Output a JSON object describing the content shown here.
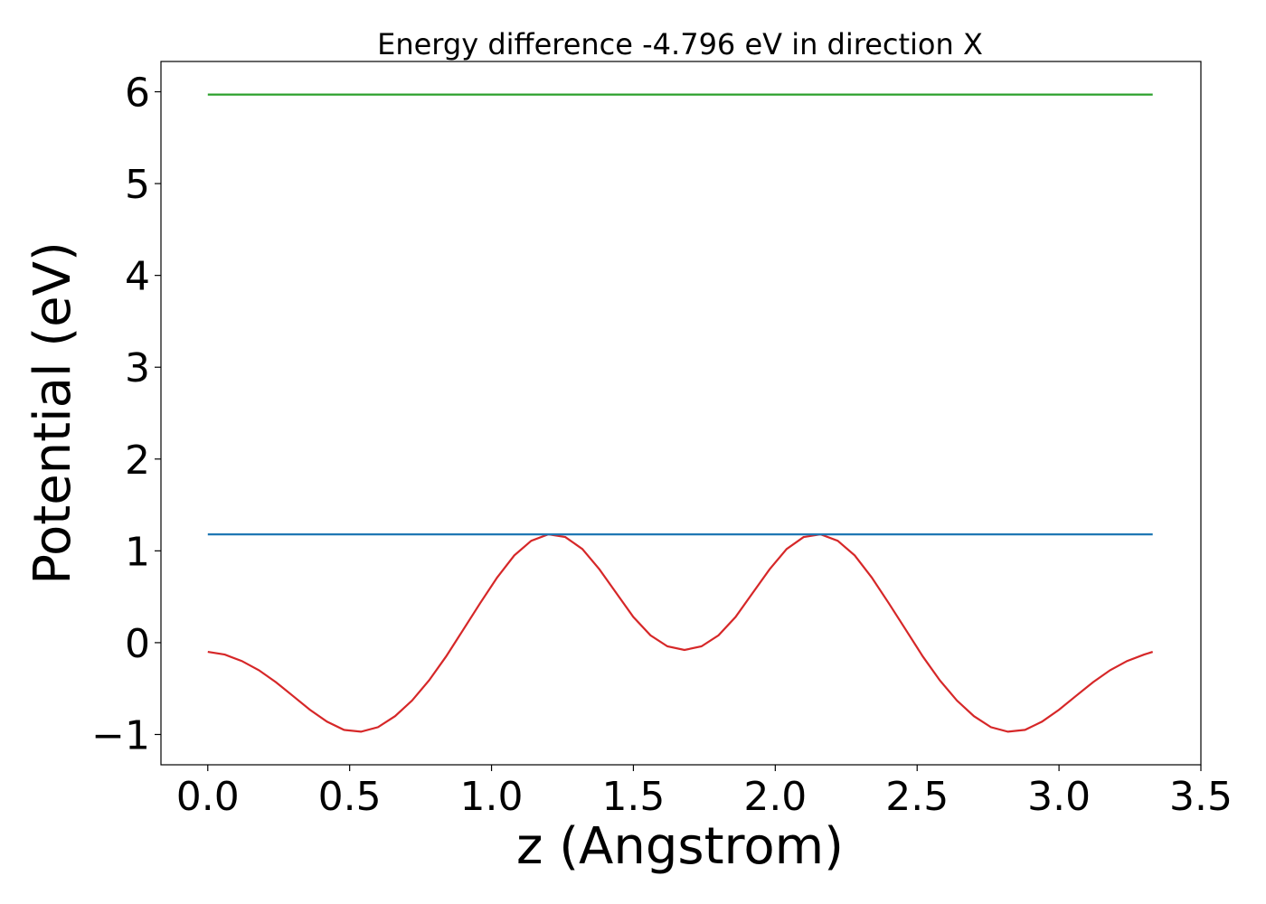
{
  "chart_data": {
    "type": "line",
    "title": "Energy difference -4.796 eV in direction X",
    "xlabel": "z (Angstrom)",
    "ylabel": "Potential (eV)",
    "xlim": [
      -0.165,
      3.5
    ],
    "ylim": [
      -1.33,
      6.33
    ],
    "xticks": [
      0.0,
      0.5,
      1.0,
      1.5,
      2.0,
      2.5,
      3.0,
      3.5
    ],
    "xtick_labels": [
      "0.0",
      "0.5",
      "1.0",
      "1.5",
      "2.0",
      "2.5",
      "3.0",
      "3.5"
    ],
    "yticks": [
      -1,
      0,
      1,
      2,
      3,
      4,
      5,
      6
    ],
    "ytick_labels": [
      "−1",
      "0",
      "1",
      "2",
      "3",
      "4",
      "5",
      "6"
    ],
    "grid": false,
    "series": [
      {
        "color": "#d62728",
        "x": [
          0.0,
          0.06,
          0.12,
          0.18,
          0.24,
          0.3,
          0.36,
          0.42,
          0.48,
          0.54,
          0.6,
          0.66,
          0.72,
          0.78,
          0.84,
          0.9,
          0.96,
          1.02,
          1.08,
          1.14,
          1.2,
          1.26,
          1.32,
          1.38,
          1.44,
          1.5,
          1.56,
          1.62,
          1.68,
          1.74,
          1.8,
          1.86,
          1.92,
          1.98,
          2.04,
          2.1,
          2.16,
          2.22,
          2.28,
          2.34,
          2.4,
          2.46,
          2.52,
          2.58,
          2.64,
          2.7,
          2.76,
          2.82,
          2.88,
          2.94,
          3.0,
          3.06,
          3.12,
          3.18,
          3.24,
          3.3,
          3.33
        ],
        "y": [
          -0.1,
          -0.13,
          -0.2,
          -0.3,
          -0.43,
          -0.58,
          -0.73,
          -0.86,
          -0.95,
          -0.97,
          -0.92,
          -0.8,
          -0.63,
          -0.41,
          -0.15,
          0.14,
          0.43,
          0.71,
          0.95,
          1.11,
          1.18,
          1.15,
          1.02,
          0.8,
          0.54,
          0.28,
          0.08,
          -0.04,
          -0.08,
          -0.04,
          0.08,
          0.28,
          0.54,
          0.8,
          1.02,
          1.15,
          1.18,
          1.11,
          0.95,
          0.71,
          0.43,
          0.14,
          -0.15,
          -0.41,
          -0.63,
          -0.8,
          -0.92,
          -0.97,
          -0.95,
          -0.86,
          -0.73,
          -0.58,
          -0.43,
          -0.3,
          -0.2,
          -0.13,
          -0.1
        ]
      },
      {
        "color": "#1f77b4",
        "x": [
          0.0,
          3.33
        ],
        "y": [
          1.18,
          1.18
        ]
      },
      {
        "color": "#2ca02c",
        "x": [
          0.0,
          3.33
        ],
        "y": [
          5.97,
          5.97
        ]
      }
    ]
  }
}
